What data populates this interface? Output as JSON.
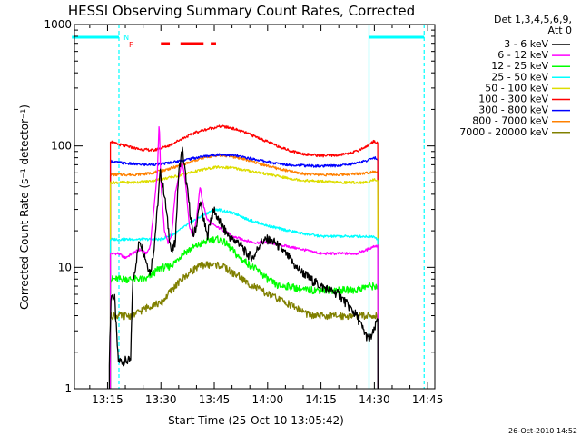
{
  "title": "HESSI Observing Summary Count Rates, Corrected",
  "ylabel": "Corrected Count Rate (s⁻¹ detector⁻¹)",
  "xlabel": "Start Time (25-Oct-10 13:05:42)",
  "timestamp": "26-Oct-2010 14:52",
  "flags": {
    "n_label": "N",
    "f_label": "F",
    "night_color": "#00ffff",
    "flag_color": "#ff0000",
    "night_segments": [
      [
        "13:05",
        "13:18.2"
      ],
      [
        "14:28.5",
        "14:44"
      ]
    ],
    "flare_segments": [
      [
        "13:30",
        "13:32.5"
      ],
      [
        "13:35.5",
        "13:42"
      ],
      [
        "13:44",
        "13:45.5"
      ]
    ]
  },
  "legend": {
    "header1": "Det 1,3,4,5,6,9,",
    "header2": "Att 0"
  },
  "chart_data": {
    "type": "line",
    "yscale": "log",
    "ylim": [
      1,
      1000
    ],
    "xlim": [
      "13:05.7",
      "14:47"
    ],
    "yticks": [
      "1",
      "10",
      "100",
      "1000"
    ],
    "xticks": [
      "13:15",
      "13:30",
      "13:45",
      "14:00",
      "14:15",
      "14:30",
      "14:45"
    ],
    "vertical_lines": [
      {
        "time": "13:18.2",
        "color": "#00ffff",
        "style": "dashed"
      },
      {
        "time": "14:28.5",
        "color": "#00ffff",
        "style": "solid"
      },
      {
        "time": "14:44",
        "color": "#00ffff",
        "style": "dashed"
      }
    ],
    "series": [
      {
        "name": "3 - 6 keV",
        "color": "#000000",
        "points": [
          [
            "13:15.5",
            1.7
          ],
          [
            "13:16",
            6
          ],
          [
            "13:17",
            5.5
          ],
          [
            "13:18",
            1.7
          ],
          [
            "13:21.5",
            1.7
          ],
          [
            "13:22",
            7
          ],
          [
            "13:23",
            11
          ],
          [
            "13:24",
            17
          ],
          [
            "13:25",
            14
          ],
          [
            "13:26",
            11
          ],
          [
            "13:27",
            9
          ],
          [
            "13:28",
            14
          ],
          [
            "13:29",
            30
          ],
          [
            "13:29.8",
            62
          ],
          [
            "13:31",
            40
          ],
          [
            "13:32",
            22
          ],
          [
            "13:33",
            13
          ],
          [
            "13:34",
            16
          ],
          [
            "13:35",
            60
          ],
          [
            "13:36",
            95
          ],
          [
            "13:37",
            55
          ],
          [
            "13:38",
            32
          ],
          [
            "13:39",
            18
          ],
          [
            "13:40",
            22
          ],
          [
            "13:41",
            35
          ],
          [
            "13:42",
            25
          ],
          [
            "13:43",
            18
          ],
          [
            "13:44",
            25
          ],
          [
            "13:45",
            30
          ],
          [
            "13:46",
            25
          ],
          [
            "13:48",
            20
          ],
          [
            "13:50",
            17
          ],
          [
            "13:52",
            16
          ],
          [
            "13:54",
            13
          ],
          [
            "13:56",
            12
          ],
          [
            "13:58",
            16
          ],
          [
            "14:00",
            17
          ],
          [
            "14:02",
            16
          ],
          [
            "14:04",
            14
          ],
          [
            "14:06",
            12
          ],
          [
            "14:08",
            10
          ],
          [
            "14:10",
            9
          ],
          [
            "14:12",
            8
          ],
          [
            "14:15",
            7
          ],
          [
            "14:20",
            6
          ],
          [
            "14:25",
            4
          ],
          [
            "14:27",
            3
          ],
          [
            "14:28.5",
            2.5
          ],
          [
            "14:30",
            3
          ],
          [
            "14:31",
            4
          ]
        ]
      },
      {
        "name": "6 - 12 keV",
        "color": "#ff00ff",
        "points": [
          [
            "13:15.8",
            13
          ],
          [
            "13:18",
            13
          ],
          [
            "13:20",
            12
          ],
          [
            "13:22",
            13
          ],
          [
            "13:24",
            14
          ],
          [
            "13:26",
            13
          ],
          [
            "13:27",
            15
          ],
          [
            "13:28",
            30
          ],
          [
            "13:29",
            60
          ],
          [
            "13:29.5",
            160
          ],
          [
            "13:30",
            50
          ],
          [
            "13:31",
            20
          ],
          [
            "13:32",
            16
          ],
          [
            "13:33",
            18
          ],
          [
            "13:34",
            40
          ],
          [
            "13:35",
            55
          ],
          [
            "13:36",
            75
          ],
          [
            "13:37",
            48
          ],
          [
            "13:38",
            22
          ],
          [
            "13:39",
            18
          ],
          [
            "13:40",
            25
          ],
          [
            "13:41",
            46
          ],
          [
            "13:42",
            32
          ],
          [
            "13:43",
            25
          ],
          [
            "13:45",
            22
          ],
          [
            "13:48",
            20
          ],
          [
            "13:50",
            18
          ],
          [
            "13:53",
            17
          ],
          [
            "13:56",
            16
          ],
          [
            "14:00",
            16
          ],
          [
            "14:05",
            15
          ],
          [
            "14:10",
            14
          ],
          [
            "14:15",
            13
          ],
          [
            "14:20",
            13
          ],
          [
            "14:25",
            13
          ],
          [
            "14:28",
            14
          ],
          [
            "14:30",
            15
          ],
          [
            "14:31",
            15
          ]
        ]
      },
      {
        "name": "12 - 25 keV",
        "color": "#00ff00",
        "points": [
          [
            "13:15.8",
            8
          ],
          [
            "13:18",
            8
          ],
          [
            "13:20",
            8
          ],
          [
            "13:22",
            8
          ],
          [
            "13:24",
            8
          ],
          [
            "13:26",
            8
          ],
          [
            "13:28",
            9
          ],
          [
            "13:30",
            10
          ],
          [
            "13:32",
            10
          ],
          [
            "13:34",
            11
          ],
          [
            "13:36",
            13
          ],
          [
            "13:38",
            14
          ],
          [
            "13:40",
            15
          ],
          [
            "13:42",
            16
          ],
          [
            "13:44",
            17
          ],
          [
            "13:46",
            17
          ],
          [
            "13:48",
            16
          ],
          [
            "13:50",
            14
          ],
          [
            "13:52",
            12
          ],
          [
            "13:54",
            11
          ],
          [
            "13:56",
            10
          ],
          [
            "13:58",
            9
          ],
          [
            "14:00",
            8
          ],
          [
            "14:03",
            7
          ],
          [
            "14:06",
            7
          ],
          [
            "14:10",
            6.5
          ],
          [
            "14:15",
            6.5
          ],
          [
            "14:20",
            6.5
          ],
          [
            "14:25",
            6.5
          ],
          [
            "14:28",
            7
          ],
          [
            "14:30",
            7
          ],
          [
            "14:31",
            7
          ]
        ]
      },
      {
        "name": "25 - 50 keV",
        "color": "#00ffff",
        "points": [
          [
            "13:15.8",
            17
          ],
          [
            "13:18",
            17
          ],
          [
            "13:20",
            17
          ],
          [
            "13:22",
            17
          ],
          [
            "13:24",
            17
          ],
          [
            "13:26",
            17
          ],
          [
            "13:28",
            17
          ],
          [
            "13:30",
            17
          ],
          [
            "13:32",
            18
          ],
          [
            "13:34",
            19
          ],
          [
            "13:36",
            21
          ],
          [
            "13:38",
            23
          ],
          [
            "13:40",
            25
          ],
          [
            "13:42",
            27
          ],
          [
            "13:44",
            29
          ],
          [
            "13:46",
            30
          ],
          [
            "13:48",
            29
          ],
          [
            "13:50",
            28
          ],
          [
            "13:52",
            27
          ],
          [
            "13:54",
            25
          ],
          [
            "13:56",
            24
          ],
          [
            "13:58",
            23
          ],
          [
            "14:00",
            22
          ],
          [
            "14:03",
            21
          ],
          [
            "14:06",
            20
          ],
          [
            "14:10",
            19
          ],
          [
            "14:15",
            18
          ],
          [
            "14:20",
            18
          ],
          [
            "14:25",
            18
          ],
          [
            "14:28",
            18
          ],
          [
            "14:30",
            18
          ],
          [
            "14:31",
            17
          ]
        ]
      },
      {
        "name": "50 - 100 keV",
        "color": "#dddd00",
        "points": [
          [
            "13:15.8",
            50
          ],
          [
            "13:18",
            50
          ],
          [
            "13:22",
            50
          ],
          [
            "13:26",
            51
          ],
          [
            "13:30",
            53
          ],
          [
            "13:34",
            56
          ],
          [
            "13:38",
            60
          ],
          [
            "13:42",
            64
          ],
          [
            "13:46",
            67
          ],
          [
            "13:50",
            66
          ],
          [
            "13:54",
            63
          ],
          [
            "13:58",
            60
          ],
          [
            "14:02",
            57
          ],
          [
            "14:06",
            54
          ],
          [
            "14:10",
            52
          ],
          [
            "14:15",
            51
          ],
          [
            "14:20",
            50
          ],
          [
            "14:25",
            50
          ],
          [
            "14:28",
            50
          ],
          [
            "14:30",
            53
          ],
          [
            "14:31",
            52
          ]
        ]
      },
      {
        "name": "100 - 300 keV",
        "color": "#ff0000",
        "points": [
          [
            "13:15.8",
            110
          ],
          [
            "13:17",
            105
          ],
          [
            "13:20",
            100
          ],
          [
            "13:24",
            94
          ],
          [
            "13:28",
            92
          ],
          [
            "13:32",
            100
          ],
          [
            "13:36",
            115
          ],
          [
            "13:40",
            130
          ],
          [
            "13:44",
            140
          ],
          [
            "13:47",
            145
          ],
          [
            "13:50",
            140
          ],
          [
            "13:54",
            128
          ],
          [
            "13:58",
            115
          ],
          [
            "14:02",
            102
          ],
          [
            "14:06",
            92
          ],
          [
            "14:10",
            86
          ],
          [
            "14:15",
            83
          ],
          [
            "14:20",
            84
          ],
          [
            "14:25",
            90
          ],
          [
            "14:28",
            100
          ],
          [
            "14:30",
            110
          ],
          [
            "14:31",
            105
          ]
        ]
      },
      {
        "name": "300 - 800 keV",
        "color": "#0000ff",
        "points": [
          [
            "13:15.8",
            75
          ],
          [
            "13:18",
            73
          ],
          [
            "13:22",
            71
          ],
          [
            "13:26",
            70
          ],
          [
            "13:30",
            71
          ],
          [
            "13:34",
            74
          ],
          [
            "13:38",
            78
          ],
          [
            "13:42",
            82
          ],
          [
            "13:46",
            85
          ],
          [
            "13:50",
            84
          ],
          [
            "13:54",
            80
          ],
          [
            "13:58",
            76
          ],
          [
            "14:02",
            72
          ],
          [
            "14:06",
            70
          ],
          [
            "14:10",
            69
          ],
          [
            "14:15",
            68
          ],
          [
            "14:20",
            69
          ],
          [
            "14:25",
            72
          ],
          [
            "14:28",
            76
          ],
          [
            "14:30",
            80
          ],
          [
            "14:31",
            78
          ]
        ]
      },
      {
        "name": "800 - 7000 keV",
        "color": "#ff8000",
        "points": [
          [
            "13:15.8",
            58
          ],
          [
            "13:18",
            58
          ],
          [
            "13:22",
            58
          ],
          [
            "13:26",
            59
          ],
          [
            "13:30",
            62
          ],
          [
            "13:34",
            67
          ],
          [
            "13:38",
            73
          ],
          [
            "13:42",
            80
          ],
          [
            "13:46",
            84
          ],
          [
            "13:50",
            82
          ],
          [
            "13:54",
            77
          ],
          [
            "13:58",
            71
          ],
          [
            "14:02",
            66
          ],
          [
            "14:06",
            62
          ],
          [
            "14:10",
            59
          ],
          [
            "14:15",
            58
          ],
          [
            "14:20",
            58
          ],
          [
            "14:25",
            59
          ],
          [
            "14:28",
            60
          ],
          [
            "14:30",
            62
          ],
          [
            "14:31",
            60
          ]
        ]
      },
      {
        "name": "7000 - 20000 keV",
        "color": "#808000",
        "points": [
          [
            "13:15.8",
            4
          ],
          [
            "13:18",
            4
          ],
          [
            "13:20",
            4
          ],
          [
            "13:22",
            4
          ],
          [
            "13:25",
            4.5
          ],
          [
            "13:28",
            5
          ],
          [
            "13:30",
            5
          ],
          [
            "13:32",
            6
          ],
          [
            "13:34",
            7
          ],
          [
            "13:36",
            8
          ],
          [
            "13:38",
            9
          ],
          [
            "13:40",
            10
          ],
          [
            "13:42",
            10.5
          ],
          [
            "13:44",
            10.5
          ],
          [
            "13:46",
            10.5
          ],
          [
            "13:48",
            10
          ],
          [
            "13:50",
            9
          ],
          [
            "13:52",
            8.5
          ],
          [
            "13:54",
            7.5
          ],
          [
            "13:56",
            7
          ],
          [
            "13:58",
            6.5
          ],
          [
            "14:00",
            6
          ],
          [
            "14:03",
            5.5
          ],
          [
            "14:06",
            5
          ],
          [
            "14:09",
            4.5
          ],
          [
            "14:12",
            4
          ],
          [
            "14:15",
            4
          ],
          [
            "14:20",
            4
          ],
          [
            "14:25",
            4
          ],
          [
            "14:28",
            4
          ],
          [
            "14:30",
            4
          ],
          [
            "14:31",
            4
          ]
        ]
      }
    ]
  }
}
